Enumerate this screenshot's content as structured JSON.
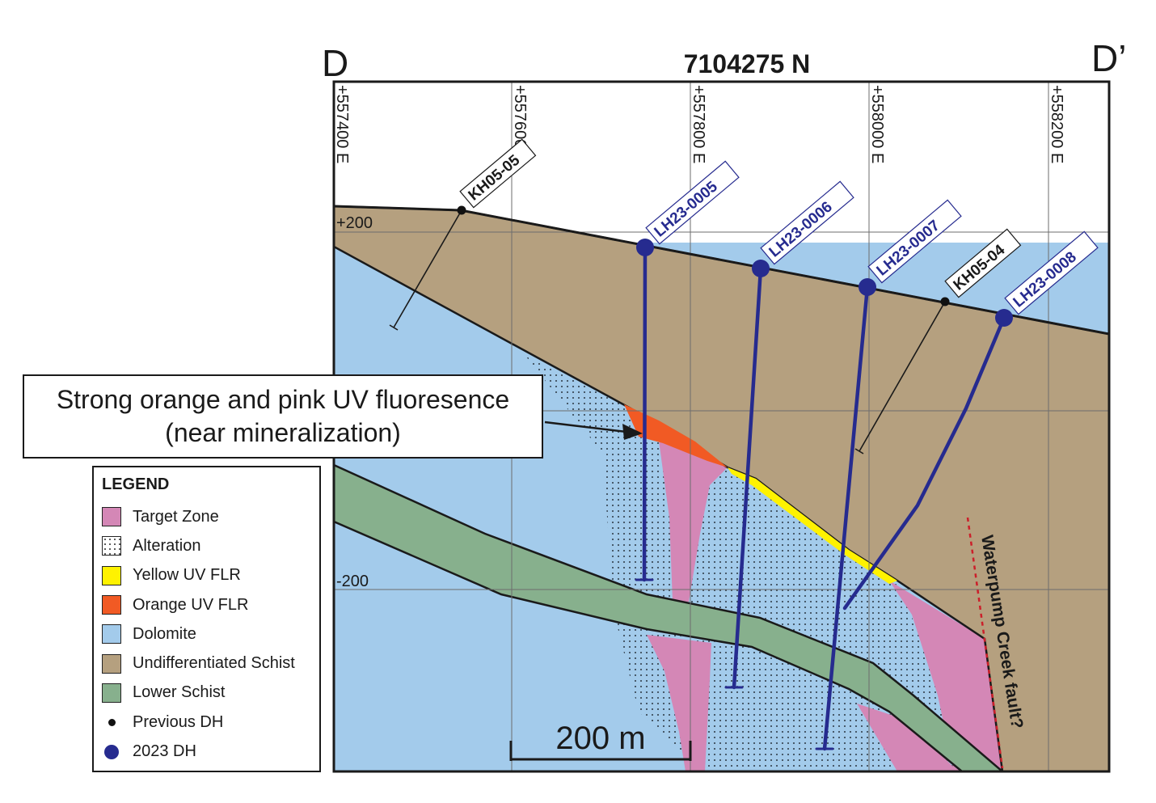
{
  "section": {
    "left_label": "D",
    "right_label": "D’",
    "title": "7104275 N",
    "eastings": [
      "+557400 E",
      "+557600 E",
      "+557800 E",
      "+558000 E",
      "+558200 E"
    ],
    "elevations": [
      "+200",
      "-200"
    ],
    "scale_bar": "200 m",
    "fault_label": "Waterpump Creek fault?"
  },
  "drillholes": [
    {
      "id": "KH05-05",
      "type": "previous"
    },
    {
      "id": "LH23-0005",
      "type": "2023"
    },
    {
      "id": "LH23-0006",
      "type": "2023"
    },
    {
      "id": "LH23-0007",
      "type": "2023"
    },
    {
      "id": "KH05-04",
      "type": "previous"
    },
    {
      "id": "LH23-0008",
      "type": "2023"
    }
  ],
  "callout": {
    "line1": "Strong orange and pink UV fluoresence",
    "line2": "(near mineralization)"
  },
  "legend": {
    "title": "LEGEND",
    "items": [
      {
        "label": "Target Zone",
        "kind": "swatch",
        "color": "#d487b6"
      },
      {
        "label": "Alteration",
        "kind": "dots",
        "color": "#ffffff"
      },
      {
        "label": "Yellow UV FLR",
        "kind": "swatch",
        "color": "#fff200"
      },
      {
        "label": "Orange UV FLR",
        "kind": "swatch",
        "color": "#f15a24"
      },
      {
        "label": "Dolomite",
        "kind": "swatch",
        "color": "#a3cbeb"
      },
      {
        "label": "Undifferentiated Schist",
        "kind": "swatch",
        "color": "#b5a07f"
      },
      {
        "label": "Lower Schist",
        "kind": "swatch",
        "color": "#87b08d"
      },
      {
        "label": "Previous DH",
        "kind": "dot-small",
        "color": "#111111"
      },
      {
        "label": "2023 DH",
        "kind": "dot-large",
        "color": "#262b8f"
      }
    ]
  },
  "colors": {
    "schist": "#b5a07f",
    "dolomite": "#a3cbeb",
    "lower_schist": "#87b08d",
    "target": "#d487b6",
    "yellow_flr": "#fff200",
    "orange_flr": "#f15a24",
    "dh2023": "#262b8f"
  }
}
